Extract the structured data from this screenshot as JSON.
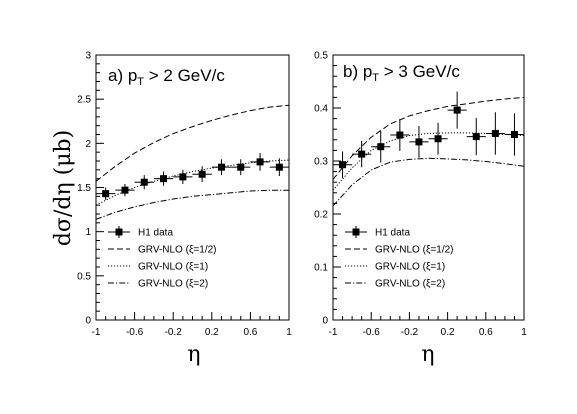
{
  "ylabel_main": "dσ/dη (μb)",
  "chart_data": [
    {
      "type": "line",
      "panel_label_prefix": "a) p",
      "panel_label_sub": "T",
      "panel_label_suffix": " > 2  GeV/c",
      "xlabel": "η",
      "xlim": [
        -1,
        1
      ],
      "ylim": [
        0,
        3
      ],
      "xticks": [
        -1,
        -0.6,
        -0.2,
        0.2,
        0.6,
        1
      ],
      "xtick_labels": [
        "-1",
        "-0.6",
        "-0.2",
        "0.2",
        "0.6",
        "1"
      ],
      "yticks": [
        0,
        0.5,
        1,
        1.5,
        2,
        2.5,
        3
      ],
      "ytick_labels": [
        "0",
        "0.5",
        "1",
        "1.5",
        "2",
        "2.5",
        "3"
      ],
      "legend_position": "lower-left",
      "data": {
        "name": "H1 data",
        "x": [
          -0.9,
          -0.7,
          -0.5,
          -0.3,
          -0.1,
          0.1,
          0.3,
          0.5,
          0.7,
          0.9
        ],
        "y": [
          1.43,
          1.47,
          1.56,
          1.6,
          1.62,
          1.65,
          1.73,
          1.73,
          1.79,
          1.73
        ],
        "err": [
          0.07,
          0.07,
          0.08,
          0.08,
          0.08,
          0.09,
          0.09,
          0.09,
          0.1,
          0.1
        ]
      },
      "series": [
        {
          "name": "GRV-NLO (ξ=1/2)",
          "style": "dashed",
          "x": [
            -1,
            -0.8,
            -0.6,
            -0.4,
            -0.2,
            0,
            0.2,
            0.4,
            0.6,
            0.8,
            1
          ],
          "y": [
            1.57,
            1.74,
            1.89,
            2.01,
            2.11,
            2.19,
            2.26,
            2.32,
            2.37,
            2.41,
            2.43
          ]
        },
        {
          "name": "GRV-NLO (ξ=1)",
          "style": "dotted",
          "x": [
            -1,
            -0.8,
            -0.6,
            -0.4,
            -0.2,
            0,
            0.2,
            0.4,
            0.6,
            0.8,
            1
          ],
          "y": [
            1.3,
            1.41,
            1.5,
            1.57,
            1.63,
            1.68,
            1.72,
            1.75,
            1.78,
            1.8,
            1.81
          ]
        },
        {
          "name": "GRV-NLO (ξ=2)",
          "style": "dashdot",
          "x": [
            -1,
            -0.8,
            -0.6,
            -0.4,
            -0.2,
            0,
            0.2,
            0.4,
            0.6,
            0.8,
            1
          ],
          "y": [
            1.14,
            1.22,
            1.28,
            1.33,
            1.37,
            1.4,
            1.42,
            1.44,
            1.46,
            1.47,
            1.47
          ]
        }
      ]
    },
    {
      "type": "line",
      "panel_label_prefix": "b) p",
      "panel_label_sub": "T",
      "panel_label_suffix": " > 3  GeV/c",
      "xlabel": "η",
      "xlim": [
        -1,
        1
      ],
      "ylim": [
        0,
        0.5
      ],
      "xticks": [
        -1,
        -0.6,
        -0.2,
        0.2,
        0.6,
        1
      ],
      "xtick_labels": [
        "-1",
        "-0.6",
        "-0.2",
        "0.2",
        "0.6",
        "1"
      ],
      "yticks": [
        0,
        0.1,
        0.2,
        0.3,
        0.4,
        0.5
      ],
      "ytick_labels": [
        "0",
        "0.1",
        "0.2",
        "0.3",
        "0.4",
        "0.5"
      ],
      "legend_position": "lower-left",
      "data": {
        "name": "H1 data",
        "x": [
          -0.9,
          -0.7,
          -0.5,
          -0.3,
          -0.1,
          0.1,
          0.3,
          0.5,
          0.7,
          0.9
        ],
        "y": [
          0.293,
          0.313,
          0.327,
          0.349,
          0.336,
          0.342,
          0.396,
          0.346,
          0.352,
          0.35
        ],
        "err": [
          0.025,
          0.025,
          0.03,
          0.03,
          0.03,
          0.03,
          0.035,
          0.035,
          0.04,
          0.04
        ]
      },
      "series": [
        {
          "name": "GRV-NLO (ξ=1/2)",
          "style": "dashed",
          "x": [
            -1,
            -0.8,
            -0.6,
            -0.4,
            -0.2,
            0,
            0.2,
            0.4,
            0.6,
            0.8,
            1
          ],
          "y": [
            0.265,
            0.31,
            0.345,
            0.37,
            0.385,
            0.395,
            0.403,
            0.408,
            0.413,
            0.417,
            0.42
          ]
        },
        {
          "name": "GRV-NLO (ξ=1)",
          "style": "dotted",
          "x": [
            -1,
            -0.8,
            -0.6,
            -0.4,
            -0.2,
            0,
            0.2,
            0.4,
            0.6,
            0.8,
            1
          ],
          "y": [
            0.245,
            0.287,
            0.32,
            0.338,
            0.348,
            0.352,
            0.353,
            0.353,
            0.352,
            0.35,
            0.348
          ]
        },
        {
          "name": "GRV-NLO (ξ=2)",
          "style": "dashdot",
          "x": [
            -1,
            -0.8,
            -0.6,
            -0.4,
            -0.2,
            0,
            0.2,
            0.4,
            0.6,
            0.8,
            1
          ],
          "y": [
            0.215,
            0.255,
            0.283,
            0.298,
            0.303,
            0.305,
            0.304,
            0.302,
            0.299,
            0.295,
            0.29
          ]
        }
      ]
    }
  ]
}
